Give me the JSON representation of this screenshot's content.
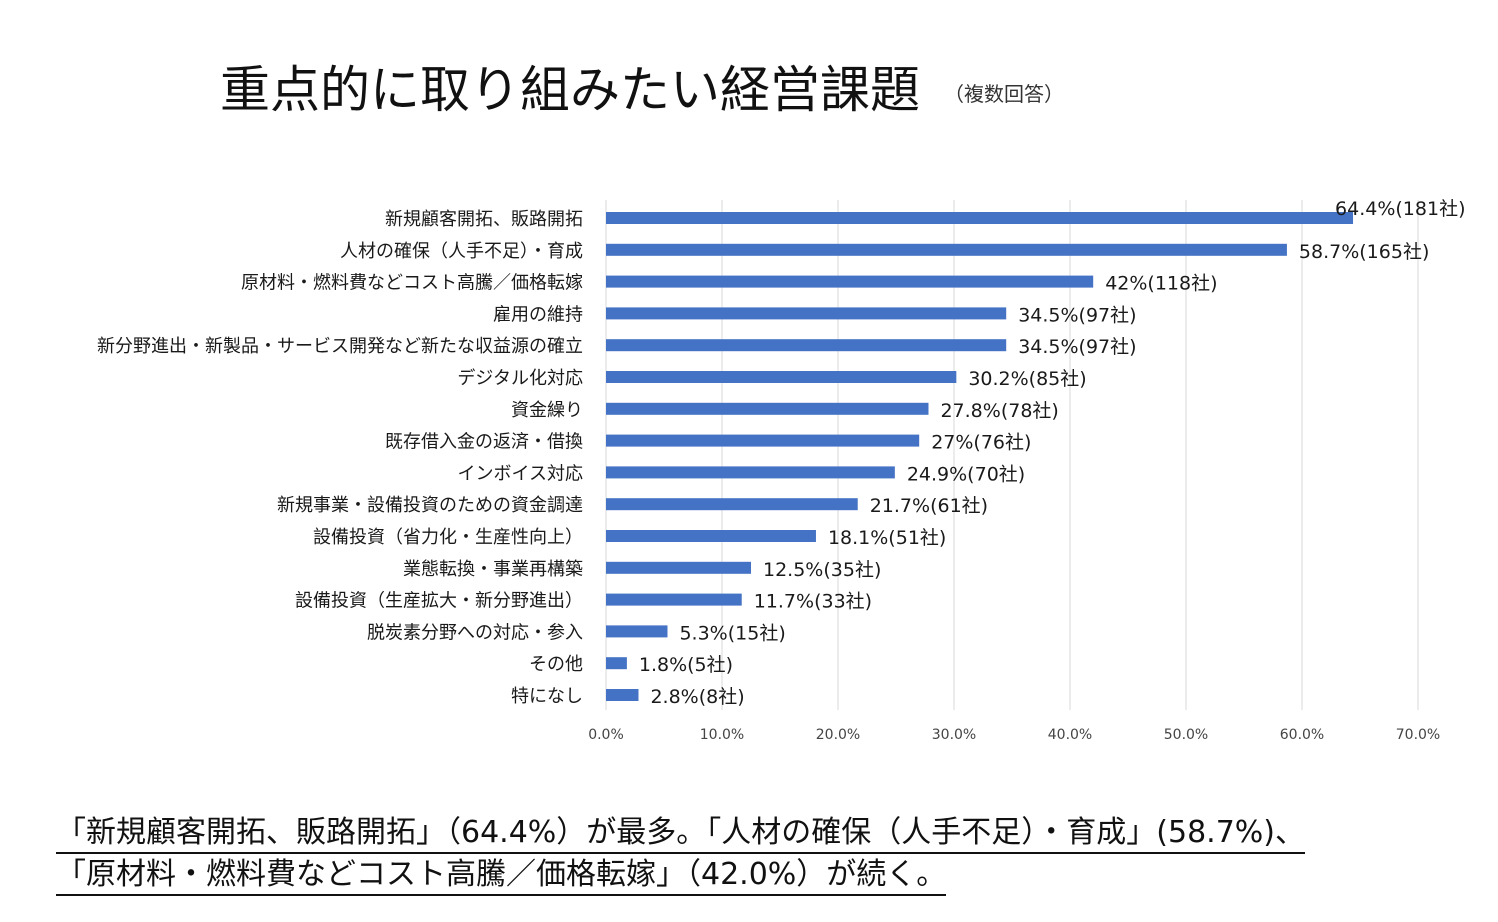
{
  "header": {
    "title": "重点的に取り組みたい経営課題",
    "subtitle": "（複数回答）"
  },
  "chart_data": {
    "type": "bar",
    "orientation": "horizontal",
    "title": "重点的に取り組みたい経営課題",
    "xlabel": "",
    "ylabel": "",
    "xlim": [
      0,
      70
    ],
    "grid": true,
    "x_ticks": [
      "0.0%",
      "10.0%",
      "20.0%",
      "30.0%",
      "40.0%",
      "50.0%",
      "60.0%",
      "70.0%"
    ],
    "bar_color": "#4472C4",
    "categories": [
      "新規顧客開拓、販路開拓",
      "人材の確保（人手不足）・育成",
      "原材料・燃料費などコスト高騰／価格転嫁",
      "雇用の維持",
      "新分野進出・新製品・サービス開発など新たな収益源の確立",
      "デジタル化対応",
      "資金繰り",
      "既存借入金の返済・借換",
      "インボイス対応",
      "新規事業・設備投資のための資金調達",
      "設備投資（省力化・生産性向上）",
      "業態転換・事業再構築",
      "設備投資（生産拡大・新分野進出）",
      "脱炭素分野への対応・参入",
      "その他",
      "特になし"
    ],
    "values": [
      64.4,
      58.7,
      42,
      34.5,
      34.5,
      30.2,
      27.8,
      27,
      24.9,
      21.7,
      18.1,
      12.5,
      11.7,
      5.3,
      1.8,
      2.8
    ],
    "data_labels": [
      "64.4%(181社)",
      "58.7%(165社)",
      "42%(118社)",
      "34.5%(97社)",
      "34.5%(97社)",
      "30.2%(85社)",
      "27.8%(78社)",
      "27%(76社)",
      "24.9%(70社)",
      "21.7%(61社)",
      "18.1%(51社)",
      "12.5%(35社)",
      "11.7%(33社)",
      "5.3%(15社)",
      "1.8%(5社)",
      "2.8%(8社)"
    ]
  },
  "summary": {
    "line1": "「新規顧客開拓、販路開拓」（64.4%）が最多。「人材の確保（人手不足）・育成」(58.7%)、",
    "line2": "「原材料・燃料費などコスト高騰／価格転嫁」（42.0%）が続く。"
  }
}
